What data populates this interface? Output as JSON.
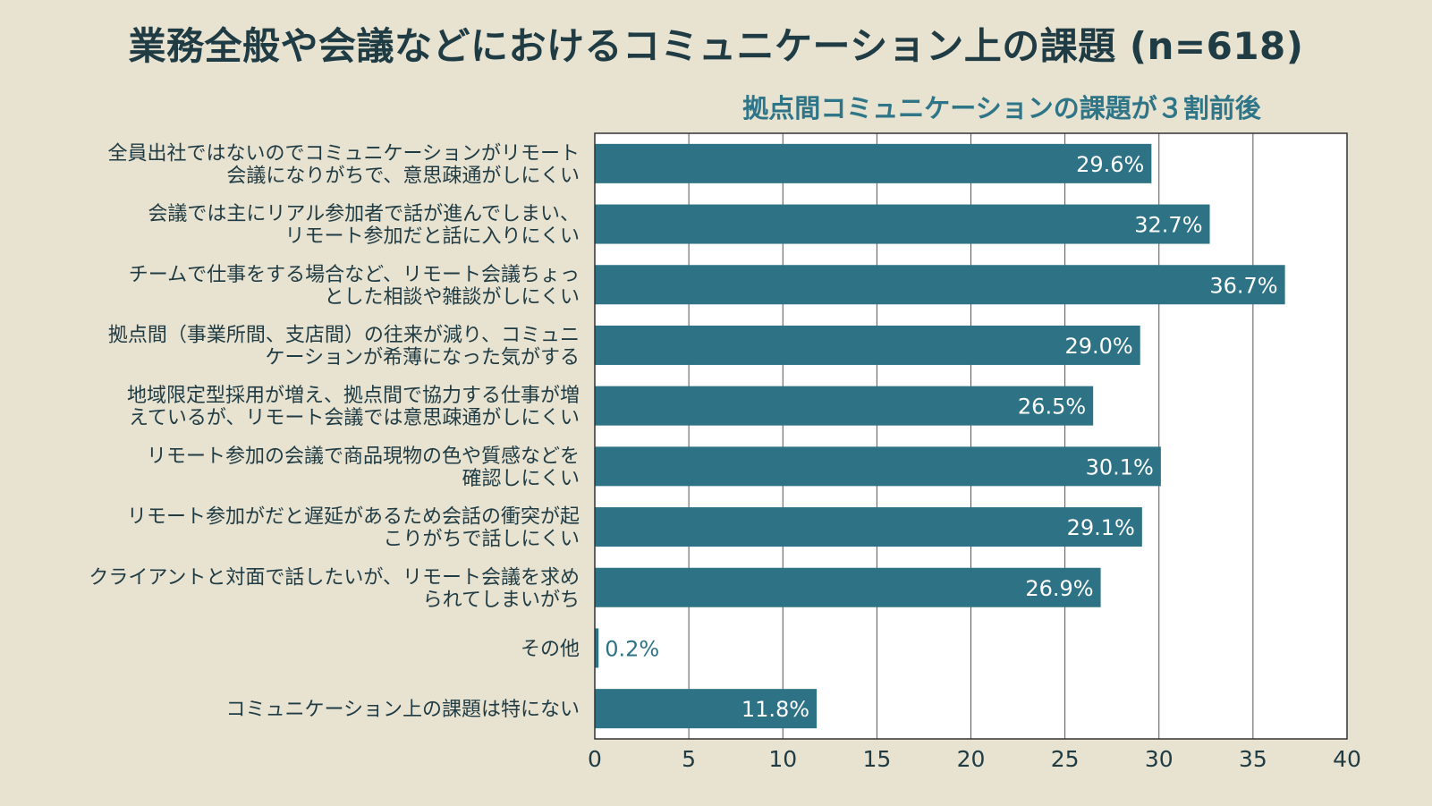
{
  "title": "業務全般や会議などにおけるコミュニケーション上の課題 (n=618)",
  "subtitle": "拠点間コミュニケーションの課題が３割前後",
  "colors": {
    "background": "#e8e2d1",
    "bar": "#2e7385",
    "plot_background": "#ffffff",
    "title": "#1f3b43",
    "subtitle": "#2e7588",
    "label": "#1f3b43",
    "grid": "#555555"
  },
  "chart_data": {
    "type": "bar",
    "orientation": "horizontal",
    "title": "業務全般や会議などにおけるコミュニケーション上の課題 (n=618)",
    "xlabel": "",
    "ylabel": "",
    "xlim": [
      0,
      40
    ],
    "x_ticks": [
      0,
      5,
      10,
      15,
      20,
      25,
      30,
      35,
      40
    ],
    "grid": true,
    "unit_suffix": "%",
    "categories": [
      [
        "全員出社ではないのでコミュニケーションがリモート",
        "会議になりがちで、意思疎通がしにくい"
      ],
      [
        "会議では主にリアル参加者で話が進んでしまい、",
        "リモート参加だと話に入りにくい"
      ],
      [
        "チームで仕事をする場合など、リモート会議ちょっ",
        "とした相談や雑談がしにくい"
      ],
      [
        "拠点間（事業所間、支店間）の往来が減り、コミュニ",
        "ケーションが希薄になった気がする"
      ],
      [
        "地域限定型採用が増え、拠点間で協力する仕事が増",
        "えているが、リモート会議では意思疎通がしにくい"
      ],
      [
        "リモート参加の会議で商品現物の色や質感などを",
        "確認しにくい"
      ],
      [
        "リモート参加がだと遅延があるため会話の衝突が起",
        "こりがちで話しにくい"
      ],
      [
        "クライアントと対面で話したいが、リモート会議を求め",
        "られてしまいがち"
      ],
      [
        "その他"
      ],
      [
        "コミュニケーション上の課題は特にない"
      ]
    ],
    "values": [
      29.6,
      32.7,
      36.7,
      29.0,
      26.5,
      30.1,
      29.1,
      26.9,
      0.2,
      11.8
    ],
    "value_labels": [
      "29.6%",
      "32.7%",
      "36.7%",
      "29.0%",
      "26.5%",
      "30.1%",
      "29.1%",
      "26.9%",
      "0.2%",
      "11.8%"
    ]
  }
}
